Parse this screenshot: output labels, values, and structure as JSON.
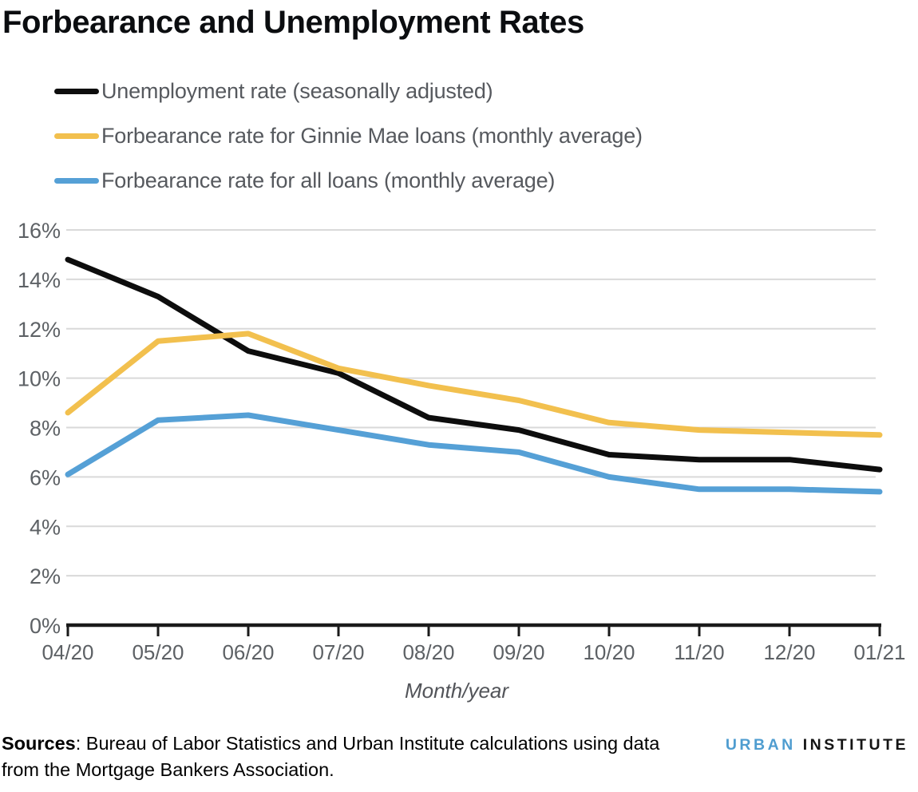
{
  "title": "Forbearance and Unemployment Rates",
  "chart_data": {
    "type": "line",
    "categories": [
      "04/20",
      "05/20",
      "06/20",
      "07/20",
      "08/20",
      "09/20",
      "10/20",
      "11/20",
      "12/20",
      "01/21"
    ],
    "series": [
      {
        "name": "Unemployment rate (seasonally adjusted)",
        "color": "#0d0d0d",
        "values": [
          14.8,
          13.3,
          11.1,
          10.2,
          8.4,
          7.9,
          6.9,
          6.7,
          6.7,
          6.3
        ]
      },
      {
        "name": "Forbearance rate for Ginnie Mae loans (monthly average)",
        "color": "#F2C04E",
        "values": [
          8.6,
          11.5,
          11.8,
          10.4,
          9.7,
          9.1,
          8.2,
          7.9,
          7.8,
          7.7
        ]
      },
      {
        "name": "Forbearance rate for all loans (monthly average)",
        "color": "#55A0D6",
        "values": [
          6.1,
          8.3,
          8.5,
          7.9,
          7.3,
          7.0,
          6.0,
          5.5,
          5.5,
          5.4
        ]
      }
    ],
    "xlabel": "Month/year",
    "ylabel": "",
    "ylim": [
      0,
      16
    ],
    "ytick_step": 2,
    "ytick_suffix": "%",
    "grid": true,
    "legend_position": "top-left"
  },
  "footer": {
    "sources_label": "Sources",
    "sources_text": ": Bureau of Labor Statistics and Urban Institute calculations using data from the Mortgage Bankers Association.",
    "logo_part1": "URBAN",
    "logo_part2": "INSTITUTE"
  },
  "colors": {
    "gridline": "#D9D9D9",
    "axis": "#1a1a1a",
    "logo_blue": "#4F9DD0"
  }
}
